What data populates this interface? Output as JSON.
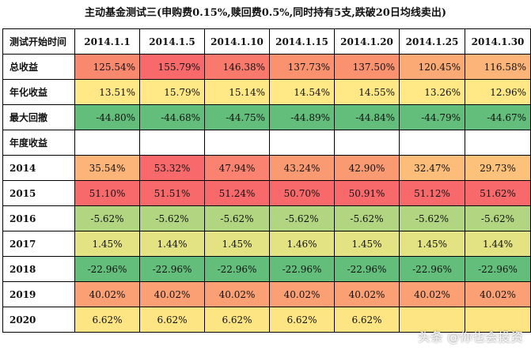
{
  "title": "主动基金测试三(申购费0.15%,赎回费0.5%,同时持有5支,跌破20日均线卖出)",
  "table": {
    "corner_label": "测试开始时间",
    "columns": [
      "2014.1.1",
      "2014.1.5",
      "2014.1.10",
      "2014.1.15",
      "2014.1.20",
      "2014.1.25",
      "2014.1.30"
    ],
    "rows": [
      {
        "label": "总收益",
        "align": "right",
        "values": [
          "125.54%",
          "155.79%",
          "146.38%",
          "137.73%",
          "137.50%",
          "120.45%",
          "116.58%"
        ],
        "colors": [
          "#f8886e",
          "#f8696b",
          "#f97a6d",
          "#fa9270",
          "#fa9270",
          "#fbaa76",
          "#fcb478"
        ]
      },
      {
        "label": "年化收益",
        "align": "right",
        "values": [
          "13.51%",
          "15.79%",
          "15.14%",
          "14.54%",
          "14.55%",
          "13.26%",
          "12.96%"
        ],
        "colors": [
          "#ffe885",
          "#ffe885",
          "#ffe885",
          "#ffe885",
          "#ffe885",
          "#ffe885",
          "#ffe885"
        ]
      },
      {
        "label": "最大回撤",
        "align": "right",
        "values": [
          "-44.80%",
          "-44.68%",
          "-44.75%",
          "-44.89%",
          "-44.84%",
          "-44.79%",
          "-44.67%"
        ],
        "colors": [
          "#63be7b",
          "#63be7b",
          "#63be7b",
          "#63be7b",
          "#63be7b",
          "#63be7b",
          "#63be7b"
        ]
      },
      {
        "label": "年度收益",
        "align": "right",
        "values": [
          "",
          "",
          "",
          "",
          "",
          "",
          ""
        ],
        "colors": [
          "#ffffff",
          "#ffffff",
          "#ffffff",
          "#ffffff",
          "#ffffff",
          "#ffffff",
          "#ffffff"
        ]
      },
      {
        "label": "2014",
        "align": "center",
        "values": [
          "35.54%",
          "53.32%",
          "47.94%",
          "43.24%",
          "42.90%",
          "32.47%",
          "29.73%"
        ],
        "colors": [
          "#fcb478",
          "#f8696b",
          "#f98370",
          "#fa9a73",
          "#fa9a73",
          "#fcbd7b",
          "#fcc27c"
        ]
      },
      {
        "label": "2015",
        "align": "center",
        "values": [
          "51.10%",
          "51.51%",
          "51.24%",
          "50.70%",
          "50.91%",
          "51.12%",
          "51.62%"
        ],
        "colors": [
          "#f8696b",
          "#f8696b",
          "#f8696b",
          "#f8696b",
          "#f8696b",
          "#f8696b",
          "#f8696b"
        ]
      },
      {
        "label": "2016",
        "align": "center",
        "values": [
          "-5.62%",
          "-5.62%",
          "-5.62%",
          "-5.62%",
          "-5.62%",
          "-5.62%",
          "-5.62%"
        ],
        "colors": [
          "#b1d580",
          "#b1d580",
          "#b1d580",
          "#b1d580",
          "#b1d580",
          "#b1d580",
          "#b1d580"
        ]
      },
      {
        "label": "2017",
        "align": "center",
        "values": [
          "1.45%",
          "1.44%",
          "1.45%",
          "1.46%",
          "1.45%",
          "1.45%",
          "1.44%"
        ],
        "colors": [
          "#e3e383",
          "#e3e383",
          "#e3e383",
          "#e3e383",
          "#e3e383",
          "#e3e383",
          "#e3e383"
        ]
      },
      {
        "label": "2018",
        "align": "center",
        "values": [
          "-22.96%",
          "-22.96%",
          "-22.96%",
          "-22.96%",
          "-22.96%",
          "-22.96%",
          "-22.96%"
        ],
        "colors": [
          "#63be7b",
          "#63be7b",
          "#63be7b",
          "#63be7b",
          "#63be7b",
          "#63be7b",
          "#63be7b"
        ]
      },
      {
        "label": "2019",
        "align": "center",
        "values": [
          "40.02%",
          "40.02%",
          "40.02%",
          "40.02%",
          "40.02%",
          "40.02%",
          "40.02%"
        ],
        "colors": [
          "#faa074",
          "#faa074",
          "#faa074",
          "#faa074",
          "#faa074",
          "#faa074",
          "#faa074"
        ]
      },
      {
        "label": "2020",
        "align": "center",
        "values": [
          "6.62%",
          "6.62%",
          "6.62%",
          "6.62%",
          "6.62%",
          "",
          ""
        ],
        "colors": [
          "#fde583",
          "#fde583",
          "#fde583",
          "#fde583",
          "#fde583",
          "#fde583",
          "#fde583"
        ]
      }
    ]
  },
  "watermark": "头条 @你也会投资"
}
